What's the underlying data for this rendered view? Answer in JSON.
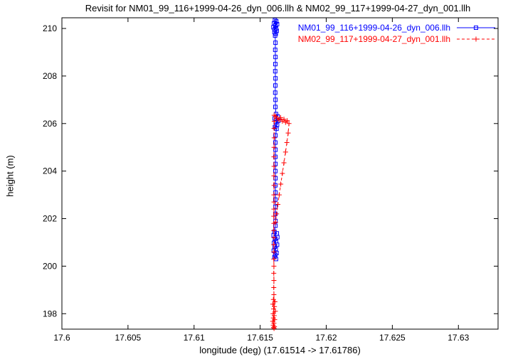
{
  "title": "Revisit for NM01_99_116+1999-04-26_dyn_006.llh & NM02_99_117+1999-04-27_dyn_001.llh",
  "chart_data": {
    "type": "scatter",
    "title": "Revisit for NM01_99_116+1999-04-26_dyn_006.llh & NM02_99_117+1999-04-27_dyn_001.llh",
    "xlabel": "longitude (deg) (17.61514 -> 17.61786)",
    "ylabel": "height (m)",
    "xlim": [
      17.6,
      17.633
    ],
    "ylim": [
      197.35,
      210.45
    ],
    "xticks": [
      17.6,
      17.605,
      17.61,
      17.615,
      17.62,
      17.625,
      17.63
    ],
    "xtick_labels": [
      "17.6",
      "17.605",
      "17.61",
      "17.615",
      "17.62",
      "17.625",
      "17.63"
    ],
    "yticks": [
      198,
      200,
      202,
      204,
      206,
      208,
      210
    ],
    "ytick_labels": [
      "198",
      "200",
      "202",
      "204",
      "206",
      "208",
      "210"
    ],
    "grid": false,
    "legend_position": "top-right",
    "background": "#ffffff",
    "axis_color": "#000000",
    "series": [
      {
        "name": "NM01_99_116+1999-04-26_dyn_006.llh",
        "color": "#0000ff",
        "marker": "square",
        "line": "solid",
        "points": [
          [
            17.61612,
            210.35
          ],
          [
            17.61622,
            210.3
          ],
          [
            17.61605,
            210.22
          ],
          [
            17.61628,
            210.18
          ],
          [
            17.61615,
            210.12
          ],
          [
            17.616,
            210.05
          ],
          [
            17.6162,
            210.0
          ],
          [
            17.6161,
            209.95
          ],
          [
            17.61625,
            209.9
          ],
          [
            17.61608,
            209.85
          ],
          [
            17.61618,
            209.78
          ],
          [
            17.61613,
            209.7
          ],
          [
            17.61616,
            209.4
          ],
          [
            17.61614,
            209.1
          ],
          [
            17.61616,
            208.8
          ],
          [
            17.61615,
            208.5
          ],
          [
            17.61614,
            208.2
          ],
          [
            17.61616,
            207.9
          ],
          [
            17.61615,
            207.6
          ],
          [
            17.61614,
            207.3
          ],
          [
            17.61616,
            207.0
          ],
          [
            17.61615,
            206.7
          ],
          [
            17.6162,
            206.4
          ],
          [
            17.61632,
            206.3
          ],
          [
            17.6161,
            206.22
          ],
          [
            17.61638,
            206.12
          ],
          [
            17.61618,
            206.05
          ],
          [
            17.61628,
            205.95
          ],
          [
            17.61612,
            205.85
          ],
          [
            17.61624,
            205.78
          ],
          [
            17.61616,
            205.5
          ],
          [
            17.61615,
            205.2
          ],
          [
            17.61616,
            204.9
          ],
          [
            17.61615,
            204.6
          ],
          [
            17.61616,
            204.3
          ],
          [
            17.61615,
            204.0
          ],
          [
            17.61616,
            203.7
          ],
          [
            17.61615,
            203.4
          ],
          [
            17.61616,
            203.1
          ],
          [
            17.61615,
            202.8
          ],
          [
            17.61616,
            202.5
          ],
          [
            17.61615,
            202.2
          ],
          [
            17.61616,
            201.9
          ],
          [
            17.61615,
            201.7
          ],
          [
            17.61608,
            201.45
          ],
          [
            17.61626,
            201.38
          ],
          [
            17.61602,
            201.3
          ],
          [
            17.6163,
            201.22
          ],
          [
            17.61612,
            201.15
          ],
          [
            17.6162,
            201.05
          ],
          [
            17.61605,
            200.98
          ],
          [
            17.61628,
            200.9
          ],
          [
            17.6161,
            200.82
          ],
          [
            17.61618,
            200.72
          ],
          [
            17.61603,
            200.65
          ],
          [
            17.61624,
            200.55
          ],
          [
            17.61614,
            200.48
          ],
          [
            17.61608,
            200.38
          ],
          [
            17.6162,
            200.3
          ]
        ]
      },
      {
        "name": "NM02_99_117+1999-04-27_dyn_001.llh",
        "color": "#ff0000",
        "marker": "plus",
        "line": "dashed",
        "points": [
          [
            17.616,
            198.6
          ],
          [
            17.61612,
            198.5
          ],
          [
            17.61596,
            198.4
          ],
          [
            17.61608,
            198.3
          ],
          [
            17.61602,
            198.2
          ],
          [
            17.61615,
            198.1
          ],
          [
            17.61598,
            198.0
          ],
          [
            17.61606,
            197.92
          ],
          [
            17.616,
            197.82
          ],
          [
            17.6161,
            197.75
          ],
          [
            17.61595,
            197.68
          ],
          [
            17.61604,
            197.6
          ],
          [
            17.61599,
            197.52
          ],
          [
            17.61608,
            197.46
          ],
          [
            17.61602,
            197.42
          ],
          [
            17.61605,
            197.38
          ],
          [
            17.61604,
            198.8
          ],
          [
            17.61603,
            199.1
          ],
          [
            17.61604,
            199.4
          ],
          [
            17.61603,
            199.7
          ],
          [
            17.61604,
            200.0
          ],
          [
            17.61603,
            200.3
          ],
          [
            17.61604,
            200.6
          ],
          [
            17.61603,
            200.9
          ],
          [
            17.61604,
            201.2
          ],
          [
            17.61603,
            201.5
          ],
          [
            17.61604,
            201.8
          ],
          [
            17.61603,
            202.1
          ],
          [
            17.61604,
            202.4
          ],
          [
            17.61605,
            202.7
          ],
          [
            17.61604,
            203.0
          ],
          [
            17.61605,
            203.4
          ],
          [
            17.61604,
            203.8
          ],
          [
            17.61605,
            204.2
          ],
          [
            17.61604,
            204.6
          ],
          [
            17.61605,
            205.0
          ],
          [
            17.61606,
            205.4
          ],
          [
            17.61605,
            205.8
          ],
          [
            17.61607,
            206.1
          ],
          [
            17.61606,
            206.35
          ],
          [
            17.61618,
            206.3
          ],
          [
            17.6163,
            206.22
          ],
          [
            17.61642,
            206.15
          ],
          [
            17.61655,
            206.25
          ],
          [
            17.61668,
            206.1
          ],
          [
            17.6168,
            206.18
          ],
          [
            17.61692,
            206.05
          ],
          [
            17.61705,
            206.12
          ],
          [
            17.61718,
            206.0
          ],
          [
            17.61712,
            205.6
          ],
          [
            17.61702,
            205.2
          ],
          [
            17.61692,
            204.8
          ],
          [
            17.6168,
            204.35
          ],
          [
            17.61668,
            203.9
          ],
          [
            17.61656,
            203.45
          ],
          [
            17.61644,
            203.0
          ],
          [
            17.61634,
            202.6
          ],
          [
            17.61624,
            202.2
          ],
          [
            17.61616,
            201.85
          ]
        ]
      }
    ]
  }
}
